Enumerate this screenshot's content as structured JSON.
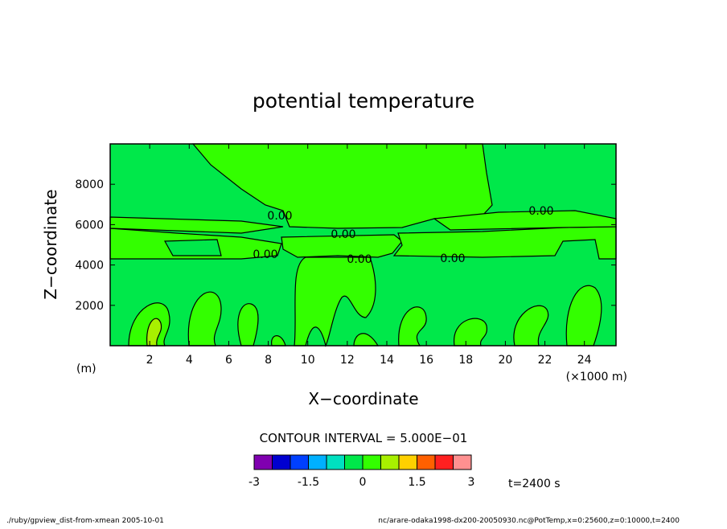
{
  "chart_data": {
    "type": "contour",
    "title": "potential temperature",
    "x_label": "X−coordinate",
    "y_label": "Z−coordinate",
    "x_unit": "(×1000 m)",
    "y_unit": "(m)",
    "xlim": [
      0,
      25.6
    ],
    "ylim": [
      0,
      10000
    ],
    "xticks": [
      2,
      4,
      6,
      8,
      10,
      12,
      14,
      16,
      18,
      20,
      22,
      24
    ],
    "yticks": [
      2000,
      4000,
      6000,
      8000
    ],
    "contour_labels": [
      "0.00",
      "0.00",
      "0.00",
      "0.00",
      "0.00",
      "0.00"
    ],
    "contour_interval": "CONTOUR INTERVAL = 5.000E−01",
    "colorbar": {
      "levels": [
        -3,
        -2.5,
        -2,
        -1.5,
        -1,
        -0.5,
        0,
        0.5,
        1,
        1.5,
        2,
        2.5,
        3
      ],
      "colors": [
        "#8000b0",
        "#0000d0",
        "#0040ff",
        "#00b0ff",
        "#00e0c0",
        "#00e84a",
        "#33ff00",
        "#a8f000",
        "#ffd000",
        "#ff6000",
        "#ff2020",
        "#ff9090"
      ],
      "ticks": [
        -3,
        -1.5,
        0,
        1.5,
        3
      ]
    },
    "time": "t=2400 s"
  },
  "footer": {
    "left": "./ruby/gpview_dist-from-xmean  2005-10-01",
    "right": "nc/arare-odaka1998-dx200-20050930.nc@PotTemp,x=0:25600,z=0:10000,t=2400"
  }
}
